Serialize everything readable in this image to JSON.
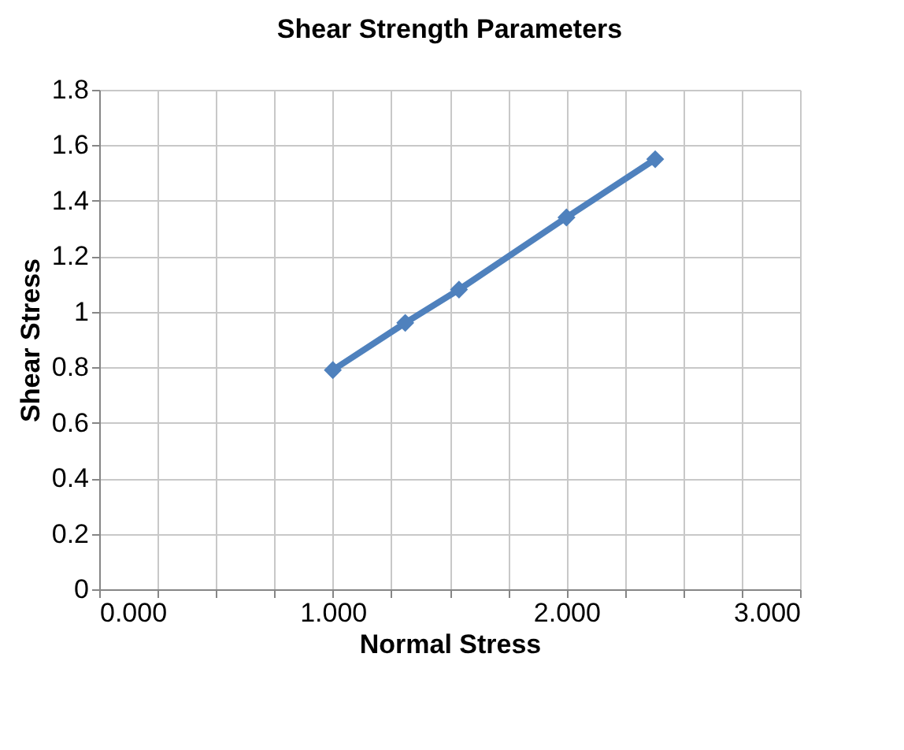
{
  "chart_data": {
    "type": "line",
    "title": "Shear Strength Parameters",
    "xlabel": "Normal Stress",
    "ylabel": "Shear Stress",
    "x": [
      1.0,
      1.31,
      1.54,
      2.0,
      2.38
    ],
    "series": [
      {
        "color": "#4f81bd",
        "values": [
          0.79,
          0.96,
          1.08,
          1.34,
          1.55
        ]
      }
    ],
    "xlim": [
      0,
      3
    ],
    "ylim": [
      0,
      1.8
    ],
    "xticks": [
      {
        "value": 0,
        "label": "0.000"
      },
      {
        "value": 0.25,
        "label": null
      },
      {
        "value": 0.5,
        "label": null
      },
      {
        "value": 0.75,
        "label": null
      },
      {
        "value": 1,
        "label": "1.000"
      },
      {
        "value": 1.25,
        "label": null
      },
      {
        "value": 1.5,
        "label": null
      },
      {
        "value": 1.75,
        "label": null
      },
      {
        "value": 2,
        "label": "2.000"
      },
      {
        "value": 2.25,
        "label": null
      },
      {
        "value": 2.5,
        "label": null
      },
      {
        "value": 2.75,
        "label": null
      },
      {
        "value": 3,
        "label": "3.000"
      }
    ],
    "yticks": [
      0,
      0.2,
      0.4,
      0.6,
      0.8,
      1,
      1.2,
      1.4,
      1.6,
      1.8
    ],
    "grid": true,
    "legend": false,
    "marker": "diamond",
    "line_style": "solid"
  }
}
